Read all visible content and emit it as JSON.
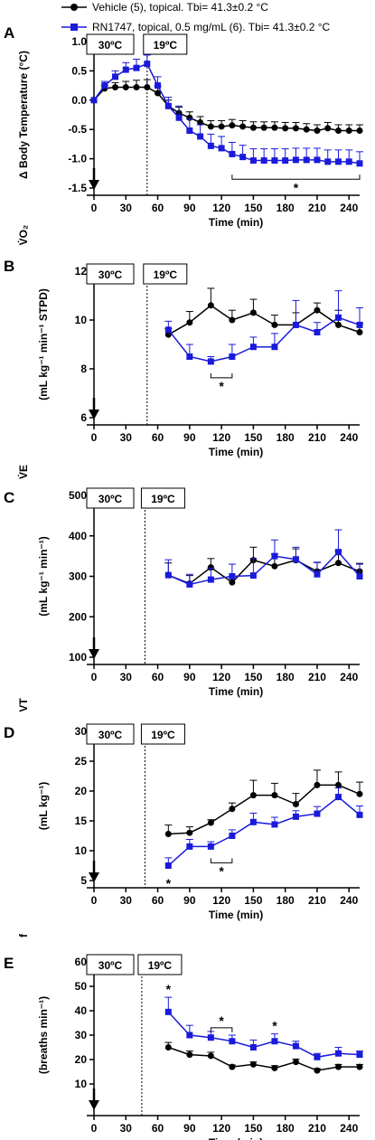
{
  "legend": [
    {
      "label": "Vehicle (5), topical. Tbi= 41.3±0.2 °C",
      "color": "#000000",
      "marker": "circle"
    },
    {
      "label": "RN1747, topical, 0.5 mg/mL (6). Tbi= 41.3±0.2 °C",
      "color": "#1a1adb",
      "marker": "square"
    }
  ],
  "colors": {
    "vehicle": "#000000",
    "rn1747": "#1a1adb"
  },
  "chart_data": [
    {
      "panel": "A",
      "type": "line",
      "xlabel": "Time (min)",
      "ylabel": "Δ Body Temperature (°C)",
      "xlim": [
        0,
        250
      ],
      "ylim": [
        -1.5,
        1.0
      ],
      "xticks": [
        0,
        30,
        60,
        90,
        120,
        150,
        180,
        210,
        240
      ],
      "yticks": [
        -1.5,
        -1.0,
        -0.5,
        0.0,
        0.5,
        1.0
      ],
      "ytick_labels": [
        "-1.5",
        "-1.0",
        "-0.5",
        "0.0",
        "0.5",
        "1.0"
      ],
      "temp_labels": [
        "30ºC",
        "19ºC"
      ],
      "switch_time": 50,
      "series": [
        {
          "name": "Vehicle",
          "x": [
            0,
            10,
            20,
            30,
            40,
            50,
            60,
            70,
            80,
            90,
            100,
            110,
            120,
            130,
            140,
            150,
            160,
            170,
            180,
            190,
            200,
            210,
            220,
            230,
            240,
            250
          ],
          "y": [
            0,
            0.2,
            0.22,
            0.22,
            0.22,
            0.22,
            0.12,
            -0.1,
            -0.22,
            -0.3,
            -0.38,
            -0.45,
            -0.45,
            -0.43,
            -0.45,
            -0.47,
            -0.47,
            -0.47,
            -0.48,
            -0.48,
            -0.5,
            -0.52,
            -0.48,
            -0.52,
            -0.52,
            -0.52
          ],
          "err": [
            0,
            0.05,
            0.08,
            0.1,
            0.12,
            0.13,
            0.12,
            0.1,
            0.1,
            0.1,
            0.1,
            0.1,
            0.1,
            0.1,
            0.1,
            0.1,
            0.1,
            0.1,
            0.1,
            0.1,
            0.1,
            0.1,
            0.1,
            0.1,
            0.1,
            0.1
          ]
        },
        {
          "name": "RN1747",
          "x": [
            0,
            10,
            20,
            30,
            40,
            50,
            60,
            70,
            80,
            90,
            100,
            110,
            120,
            130,
            140,
            150,
            160,
            170,
            180,
            190,
            200,
            210,
            220,
            230,
            240,
            250
          ],
          "y": [
            0,
            0.25,
            0.4,
            0.52,
            0.55,
            0.62,
            0.25,
            -0.1,
            -0.3,
            -0.52,
            -0.62,
            -0.78,
            -0.82,
            -0.92,
            -0.97,
            -1.03,
            -1.03,
            -1.03,
            -1.03,
            -1.02,
            -1.02,
            -1.02,
            -1.05,
            -1.05,
            -1.05,
            -1.08
          ],
          "err": [
            0,
            0.07,
            0.1,
            0.12,
            0.15,
            0.15,
            0.15,
            0.15,
            0.2,
            0.2,
            0.2,
            0.2,
            0.2,
            0.2,
            0.2,
            0.2,
            0.2,
            0.2,
            0.2,
            0.2,
            0.2,
            0.2,
            0.2,
            0.2,
            0.2,
            0.2
          ]
        }
      ],
      "annotations": [
        {
          "text": "*",
          "bracket": [
            130,
            250
          ]
        }
      ]
    },
    {
      "panel": "B",
      "type": "line",
      "xlabel": "Time (min)",
      "ylabel": "(mL kg⁻¹ min⁻¹ STPD)",
      "ylabel_main": "V̇O₂",
      "xlim": [
        0,
        250
      ],
      "ylim": [
        6,
        12
      ],
      "xticks": [
        0,
        30,
        60,
        90,
        120,
        150,
        180,
        210,
        240
      ],
      "yticks": [
        6,
        8,
        10,
        12
      ],
      "ytick_labels": [
        "6",
        "8",
        "10",
        "12"
      ],
      "temp_labels": [
        "30ºC",
        "19ºC"
      ],
      "switch_time": 50,
      "series": [
        {
          "name": "Vehicle",
          "x": [
            70,
            90,
            110,
            130,
            150,
            170,
            190,
            210,
            230,
            250
          ],
          "y": [
            9.4,
            9.9,
            10.6,
            10.0,
            10.3,
            9.8,
            9.8,
            10.4,
            9.8,
            9.5
          ],
          "err": [
            0.25,
            0.45,
            0.7,
            0.4,
            0.55,
            0.4,
            0.5,
            0.3,
            0.6,
            0.35
          ]
        },
        {
          "name": "RN1747",
          "x": [
            70,
            90,
            110,
            130,
            150,
            170,
            190,
            210,
            230,
            250
          ],
          "y": [
            9.6,
            8.5,
            8.3,
            8.5,
            8.9,
            8.9,
            9.8,
            9.5,
            10.1,
            9.8
          ],
          "err": [
            0.35,
            0.5,
            0.2,
            0.5,
            0.4,
            0.55,
            1.0,
            0.4,
            1.1,
            0.7
          ]
        }
      ],
      "annotations": [
        {
          "text": "*",
          "bracket": [
            110,
            130
          ]
        }
      ]
    },
    {
      "panel": "C",
      "type": "line",
      "xlabel": "Time (min)",
      "ylabel": "(mL kg⁻¹ min⁻¹)",
      "ylabel_main": "V̇E",
      "xlim": [
        0,
        250
      ],
      "ylim": [
        100,
        500
      ],
      "xticks": [
        0,
        30,
        60,
        90,
        120,
        150,
        180,
        210,
        240
      ],
      "yticks": [
        100,
        200,
        300,
        400,
        500
      ],
      "ytick_labels": [
        "100",
        "200",
        "300",
        "400",
        "500"
      ],
      "temp_labels": [
        "30ºC",
        "19ºC"
      ],
      "switch_time": 48,
      "series": [
        {
          "name": "Vehicle",
          "x": [
            70,
            90,
            110,
            130,
            150,
            170,
            190,
            210,
            230,
            250
          ],
          "y": [
            303,
            282,
            322,
            285,
            340,
            325,
            340,
            312,
            333,
            312
          ],
          "err": [
            30,
            20,
            22,
            15,
            32,
            30,
            28,
            22,
            30,
            20
          ]
        },
        {
          "name": "RN1747",
          "x": [
            70,
            90,
            110,
            130,
            150,
            170,
            190,
            210,
            230,
            250
          ],
          "y": [
            303,
            280,
            292,
            300,
            302,
            350,
            342,
            305,
            360,
            300
          ],
          "err": [
            38,
            25,
            28,
            30,
            42,
            40,
            30,
            30,
            55,
            30
          ]
        }
      ],
      "annotations": []
    },
    {
      "panel": "D",
      "type": "line",
      "xlabel": "Time (min)",
      "ylabel": "(mL kg⁻¹)",
      "ylabel_main": "VT",
      "xlim": [
        0,
        250
      ],
      "ylim": [
        5,
        30
      ],
      "xticks": [
        0,
        30,
        60,
        90,
        120,
        150,
        180,
        210,
        240
      ],
      "yticks": [
        5,
        10,
        15,
        20,
        25,
        30
      ],
      "ytick_labels": [
        "5",
        "10",
        "15",
        "20",
        "25",
        "30"
      ],
      "temp_labels": [
        "30ºC",
        "19ºC"
      ],
      "switch_time": 48,
      "series": [
        {
          "name": "Vehicle",
          "x": [
            70,
            90,
            110,
            130,
            150,
            170,
            190,
            210,
            230,
            250
          ],
          "y": [
            12.8,
            13.0,
            14.7,
            17.0,
            19.3,
            19.3,
            17.8,
            21.0,
            21.0,
            19.5
          ],
          "err": [
            1.5,
            1.0,
            0.5,
            1.0,
            2.5,
            2.0,
            1.8,
            2.5,
            2.2,
            2.0
          ]
        },
        {
          "name": "RN1747",
          "x": [
            70,
            90,
            110,
            130,
            150,
            170,
            190,
            210,
            230,
            250
          ],
          "y": [
            7.5,
            10.7,
            10.7,
            12.5,
            14.8,
            14.4,
            15.7,
            16.2,
            19.0,
            16.0
          ],
          "err": [
            1.3,
            1.2,
            0.8,
            1.0,
            1.5,
            1.2,
            1.0,
            1.2,
            1.5,
            1.5
          ]
        }
      ],
      "annotations": [
        {
          "text": "*",
          "at": 70
        },
        {
          "text": "*",
          "bracket": [
            110,
            130
          ]
        }
      ]
    },
    {
      "panel": "E",
      "type": "line",
      "xlabel": "Time (min)",
      "ylabel": "(breaths min⁻¹)",
      "ylabel_main": "f",
      "xlim": [
        0,
        250
      ],
      "ylim": [
        0,
        60
      ],
      "xticks": [
        0,
        30,
        60,
        90,
        120,
        150,
        180,
        210,
        240
      ],
      "yticks": [
        10,
        20,
        30,
        40,
        50,
        60
      ],
      "ytick_labels": [
        "10",
        "20",
        "30",
        "40",
        "50",
        "60"
      ],
      "temp_labels": [
        "30ºC",
        "19ºC"
      ],
      "switch_time": 45,
      "series": [
        {
          "name": "Vehicle",
          "x": [
            70,
            90,
            110,
            130,
            150,
            170,
            190,
            210,
            230,
            250
          ],
          "y": [
            25,
            22,
            21.5,
            17,
            18,
            16.5,
            19,
            15.5,
            17,
            17
          ],
          "err": [
            2,
            1.5,
            1.5,
            0.8,
            1,
            1,
            1.2,
            0.8,
            1,
            1
          ]
        },
        {
          "name": "RN1747",
          "x": [
            70,
            90,
            110,
            130,
            150,
            170,
            190,
            210,
            230,
            250
          ],
          "y": [
            39.5,
            30,
            29,
            27.5,
            25,
            27.5,
            25.5,
            21,
            22.5,
            22
          ],
          "err": [
            6,
            4,
            2.5,
            2.5,
            3,
            3,
            2,
            1.5,
            2.5,
            1.5
          ]
        }
      ],
      "annotations": [
        {
          "text": "*",
          "at": 70
        },
        {
          "text": "*",
          "bracket": [
            110,
            130
          ]
        },
        {
          "text": "*",
          "at": 170
        }
      ]
    }
  ]
}
